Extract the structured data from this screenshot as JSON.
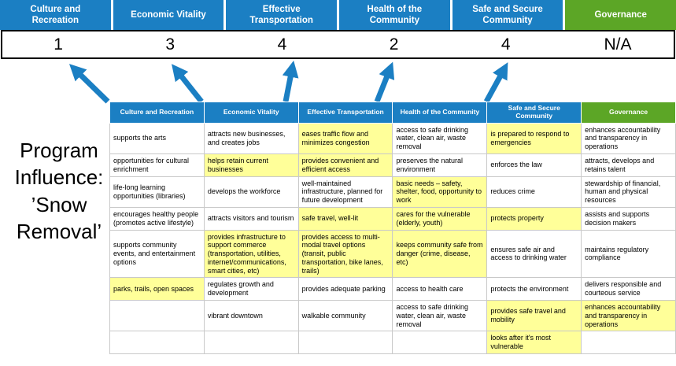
{
  "program_title": "Program Influence: ’Snow Removal’",
  "colors": {
    "header_blue": "#1b7fc3",
    "header_green": "#5ca626",
    "highlight_yellow": "#ffff99",
    "arrow_blue": "#1b7fc3"
  },
  "scoreboard": {
    "categories": [
      {
        "label": "Culture and Recreation",
        "color": "blue",
        "score": "1"
      },
      {
        "label": "Economic Vitality",
        "color": "blue",
        "score": "3"
      },
      {
        "label": "Effective Transportation",
        "color": "blue",
        "score": "4"
      },
      {
        "label": "Health of the Community",
        "color": "blue",
        "score": "2"
      },
      {
        "label": "Safe and Secure Community",
        "color": "blue",
        "score": "4"
      },
      {
        "label": "Governance",
        "color": "green",
        "score": "N/A"
      }
    ]
  },
  "matrix": {
    "headers": [
      {
        "label": "Culture and Recreation",
        "color": "blue"
      },
      {
        "label": "Economic Vitality",
        "color": "blue"
      },
      {
        "label": "Effective Transportation",
        "color": "blue"
      },
      {
        "label": "Health of the Community",
        "color": "blue"
      },
      {
        "label": "Safe and Secure Community",
        "color": "blue"
      },
      {
        "label": "Governance",
        "color": "green"
      }
    ],
    "rows": [
      [
        {
          "text": "supports the arts",
          "highlight": false
        },
        {
          "text": "attracts new businesses, and creates jobs",
          "highlight": false
        },
        {
          "text": "eases traffic flow and minimizes congestion",
          "highlight": true
        },
        {
          "text": "access to safe drinking water, clean air, waste removal",
          "highlight": false
        },
        {
          "text": "is prepared to respond to emergencies",
          "highlight": true
        },
        {
          "text": "enhances accountability and transparency in operations",
          "highlight": false
        }
      ],
      [
        {
          "text": "opportunities for cultural enrichment",
          "highlight": false
        },
        {
          "text": "helps retain current businesses",
          "highlight": true
        },
        {
          "text": "provides convenient and efficient access",
          "highlight": true
        },
        {
          "text": "preserves the natural environment",
          "highlight": false
        },
        {
          "text": "enforces the law",
          "highlight": false
        },
        {
          "text": "attracts, develops and retains talent",
          "highlight": false
        }
      ],
      [
        {
          "text": "life-long learning opportunities (libraries)",
          "highlight": false
        },
        {
          "text": "develops the workforce",
          "highlight": false
        },
        {
          "text": "well-maintained infrastructure, planned for future development",
          "highlight": false
        },
        {
          "text": "basic needs – safety, shelter, food, opportunity to work",
          "highlight": true
        },
        {
          "text": "reduces crime",
          "highlight": false
        },
        {
          "text": "stewardship of financial, human and physical resources",
          "highlight": false
        }
      ],
      [
        {
          "text": "encourages healthy people (promotes active lifestyle)",
          "highlight": false
        },
        {
          "text": "attracts visitors and tourism",
          "highlight": false
        },
        {
          "text": "safe travel, well-lit",
          "highlight": true
        },
        {
          "text": "cares for the vulnerable (elderly, youth)",
          "highlight": true
        },
        {
          "text": "protects property",
          "highlight": true
        },
        {
          "text": "assists and supports decision makers",
          "highlight": false
        }
      ],
      [
        {
          "text": "supports community events, and entertainment options",
          "highlight": false
        },
        {
          "text": "provides infrastructure to support commerce (transportation, utilities, internet/communications, smart cities, etc)",
          "highlight": true
        },
        {
          "text": "provides access to multi-modal travel options (transit, public transportation, bike lanes, trails)",
          "highlight": true
        },
        {
          "text": "keeps community safe from danger (crime, disease, etc)",
          "highlight": true
        },
        {
          "text": "ensures safe air and access to drinking water",
          "highlight": false
        },
        {
          "text": "maintains regulatory compliance",
          "highlight": false
        }
      ],
      [
        {
          "text": "parks, trails, open spaces",
          "highlight": true
        },
        {
          "text": "regulates growth and development",
          "highlight": false
        },
        {
          "text": "provides adequate parking",
          "highlight": false
        },
        {
          "text": "access to health care",
          "highlight": false
        },
        {
          "text": "protects the environment",
          "highlight": false
        },
        {
          "text": "delivers responsible and courteous service",
          "highlight": false
        }
      ],
      [
        {
          "text": "",
          "highlight": false
        },
        {
          "text": "vibrant downtown",
          "highlight": false
        },
        {
          "text": "walkable community",
          "highlight": false
        },
        {
          "text": "access to safe drinking water, clean air, waste removal",
          "highlight": false
        },
        {
          "text": "provides safe travel and mobility",
          "highlight": true
        },
        {
          "text": "enhances accountability and transparency in operations",
          "highlight": true
        }
      ],
      [
        {
          "text": "",
          "highlight": false
        },
        {
          "text": "",
          "highlight": false
        },
        {
          "text": "",
          "highlight": false
        },
        {
          "text": "",
          "highlight": false
        },
        {
          "text": "looks after it's most vulnerable",
          "highlight": true
        },
        {
          "text": "",
          "highlight": false
        }
      ]
    ]
  }
}
